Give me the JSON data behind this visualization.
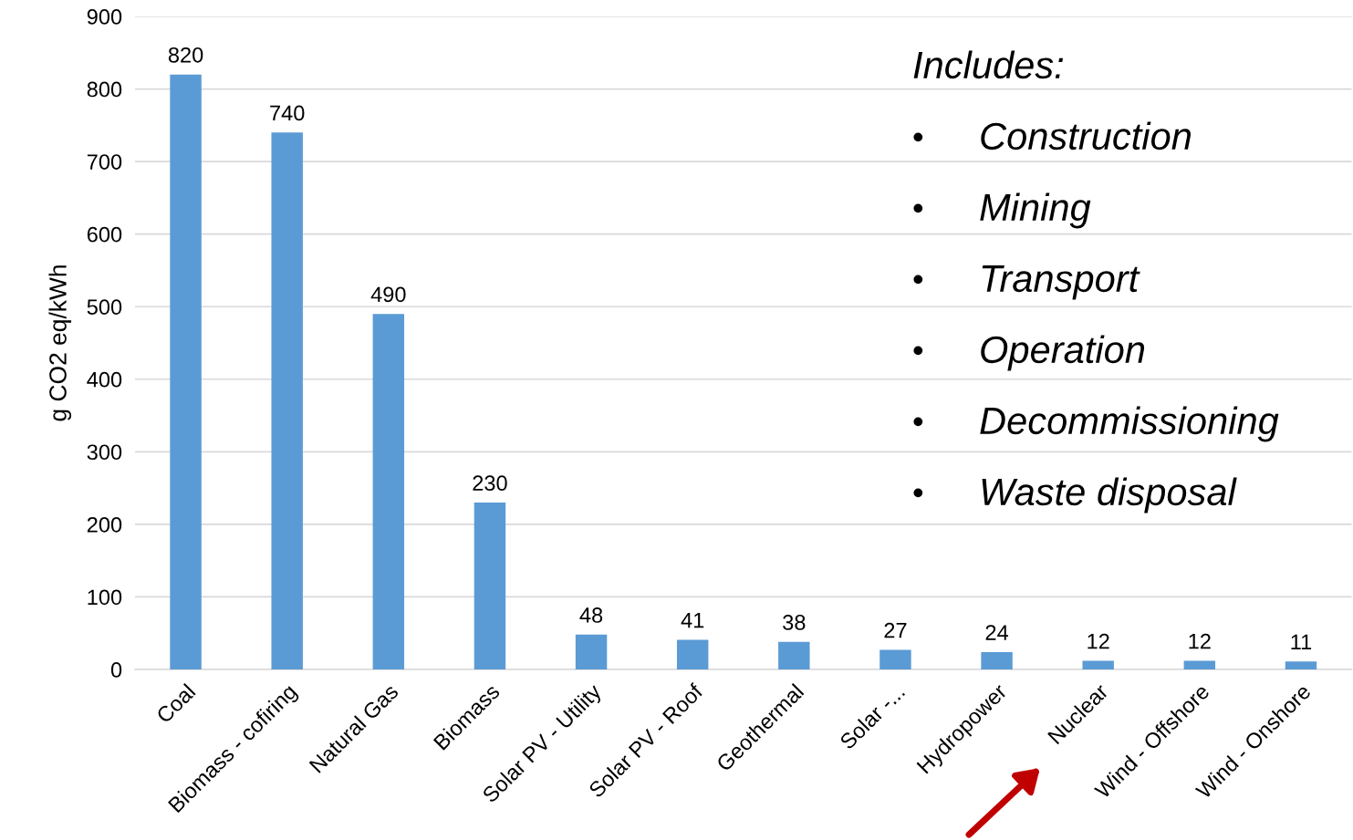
{
  "chart_data": {
    "type": "bar",
    "ylabel": "g CO2 eq/kWh",
    "categories": [
      "Coal",
      "Biomass - cofiring",
      "Natural Gas",
      "Biomass",
      "Solar PV - Utility",
      "Solar PV - Roof",
      "Geothermal",
      "Solar -...",
      "Hydropower",
      "Nuclear",
      "Wind - Offshore",
      "Wind - Onshore"
    ],
    "values": [
      820,
      740,
      490,
      230,
      48,
      41,
      38,
      27,
      24,
      12,
      12,
      11
    ],
    "color": "#5b9bd5",
    "data_labels": true,
    "grid": "y",
    "legend": false,
    "ylim": [
      0,
      900
    ],
    "yticks": [
      0,
      100,
      200,
      300,
      400,
      500,
      600,
      700,
      800,
      900
    ],
    "annotations": [
      "Includes:",
      "• Construction",
      "• Mining",
      "• Transport",
      "• Operation",
      "• Decommissioning",
      "• Waste disposal"
    ]
  }
}
